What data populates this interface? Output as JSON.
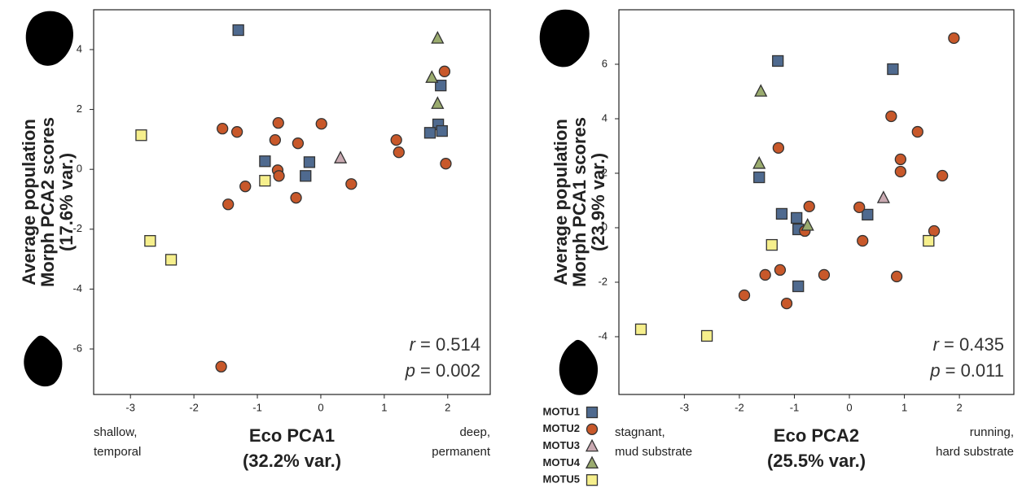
{
  "chart_data": [
    {
      "type": "scatter",
      "xlim": [
        -3.58,
        2.67
      ],
      "ylim": [
        -7.52,
        5.33
      ],
      "xticks": [
        -3,
        -2,
        -1,
        0,
        1,
        2
      ],
      "yticks": [
        -6,
        -4,
        -2,
        0,
        2,
        4
      ],
      "x_label": [
        "Eco PCA1",
        "(32.2% var.)"
      ],
      "y_label": [
        "Average population",
        "Morph PCA2 scores",
        "(17.6% var.)"
      ],
      "note_left": [
        "shallow,",
        "temporal"
      ],
      "note_right": [
        "deep,",
        "permanent"
      ],
      "stats": [
        {
          "symbol": "r",
          "text": "= 0.514"
        },
        {
          "symbol": "p",
          "text": "= 0.002"
        }
      ],
      "series": [
        {
          "color": "#4f6a8f",
          "marker": "square",
          "x": [
            -1.3,
            -0.88,
            -0.18,
            -0.24,
            1.89,
            1.85,
            1.91,
            1.72
          ],
          "values": [
            4.65,
            0.27,
            0.24,
            -0.22,
            2.8,
            1.5,
            1.28,
            1.22
          ]
        },
        {
          "color": "#c8582a",
          "marker": "circle",
          "x": [
            -1.55,
            -1.32,
            -0.67,
            0.01,
            -0.72,
            -0.36,
            -0.68,
            -0.66,
            -1.19,
            -1.46,
            -0.39,
            0.48,
            1.19,
            1.23,
            1.95,
            1.97,
            -1.57
          ],
          "values": [
            1.36,
            1.25,
            1.55,
            1.52,
            0.98,
            0.87,
            -0.03,
            -0.22,
            -0.57,
            -1.17,
            -0.95,
            -0.49,
            0.98,
            0.57,
            3.27,
            0.19,
            -6.59
          ]
        },
        {
          "color": "#c9a9b1",
          "marker": "triangle",
          "x": [
            0.31
          ],
          "values": [
            0.38
          ]
        },
        {
          "color": "#9aab6e",
          "marker": "triangle",
          "x": [
            1.84,
            1.75,
            1.84
          ],
          "values": [
            4.38,
            3.07,
            2.2
          ]
        },
        {
          "color": "#f6ef8c",
          "marker": "square",
          "x": [
            -2.83,
            -2.69,
            -2.36,
            -0.88
          ],
          "values": [
            1.14,
            -2.39,
            -3.02,
            -0.38
          ]
        }
      ]
    },
    {
      "type": "scatter",
      "xlim": [
        -4.19,
        2.99
      ],
      "ylim": [
        -6.12,
        8.0
      ],
      "xticks": [
        -3,
        -2,
        -1,
        0,
        1,
        2
      ],
      "yticks": [
        -4,
        -2,
        0,
        2,
        4,
        6
      ],
      "x_label": [
        "Eco PCA2",
        "(25.5% var.)"
      ],
      "y_label": [
        "Average population",
        "Morph PCA1 scores",
        "(23.9% var.)"
      ],
      "note_left": [
        "stagnant,",
        "mud substrate"
      ],
      "note_right": [
        "running,",
        "hard substrate"
      ],
      "stats": [
        {
          "symbol": "r",
          "text": "= 0.435"
        },
        {
          "symbol": "p",
          "text": "= 0.011"
        }
      ],
      "legend": "bottom-left-outside",
      "series": [
        {
          "name": "MOTU1",
          "color": "#4f6a8f",
          "marker": "square",
          "x": [
            -1.3,
            0.79,
            -1.64,
            -1.23,
            -0.96,
            -0.93,
            -0.93,
            0.33
          ],
          "values": [
            6.12,
            5.82,
            1.85,
            0.51,
            0.36,
            -0.06,
            -2.15,
            0.48
          ]
        },
        {
          "name": "MOTU2",
          "color": "#c8582a",
          "marker": "circle",
          "x": [
            1.9,
            0.76,
            1.24,
            0.93,
            0.93,
            1.69,
            -1.29,
            -0.73,
            0.18,
            -0.81,
            0.24,
            1.54,
            -1.26,
            -1.53,
            -0.46,
            0.86,
            -1.91,
            -1.14
          ],
          "values": [
            6.96,
            4.09,
            3.52,
            2.51,
            2.06,
            1.91,
            2.93,
            0.78,
            0.75,
            -0.12,
            -0.48,
            -0.12,
            -1.55,
            -1.73,
            -1.73,
            -1.79,
            -2.48,
            -2.78
          ]
        },
        {
          "name": "MOTU3",
          "color": "#c9a9b1",
          "marker": "triangle",
          "x": [
            0.62
          ],
          "values": [
            1.1
          ]
        },
        {
          "name": "MOTU4",
          "color": "#9aab6e",
          "marker": "triangle",
          "x": [
            -1.61,
            -1.64,
            -0.76
          ],
          "values": [
            5.01,
            2.36,
            0.09
          ]
        },
        {
          "name": "MOTU5",
          "color": "#f6ef8c",
          "marker": "square",
          "x": [
            -1.41,
            1.44,
            -3.79,
            -2.59
          ],
          "values": [
            -0.63,
            -0.48,
            -3.73,
            -3.97
          ]
        }
      ]
    }
  ]
}
